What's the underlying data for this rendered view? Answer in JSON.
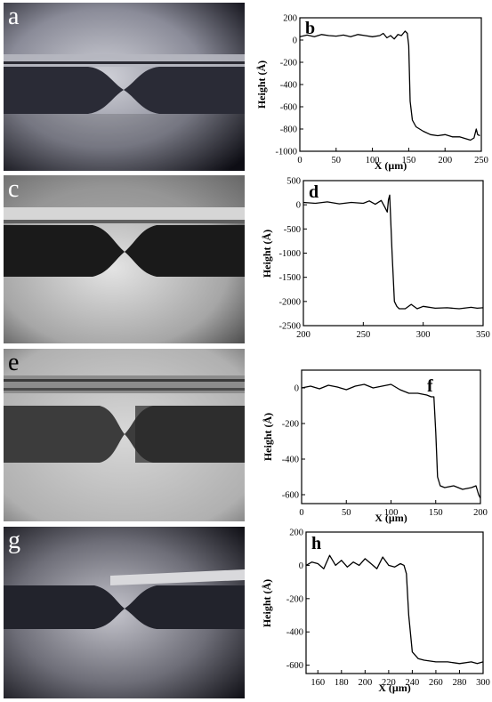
{
  "figure": {
    "panel_labels": [
      "a",
      "b",
      "c",
      "d",
      "e",
      "f",
      "g",
      "h"
    ]
  },
  "colors": {
    "line": "#000000",
    "photo_shadow": "#1c1d25",
    "photo_bright": "#c8c9cf"
  },
  "chart_data": [
    {
      "type": "line",
      "panel_label": "b",
      "xlabel": "X (μm)",
      "ylabel": "Height (Å)",
      "xlim": [
        0,
        250
      ],
      "ylim": [
        -1000,
        200
      ],
      "xticks": [
        0,
        50,
        100,
        150,
        200,
        250
      ],
      "yticks": [
        200,
        0,
        -200,
        -400,
        -600,
        -800,
        -1000
      ],
      "grid": false,
      "series": [
        {
          "x": [
            0,
            10,
            20,
            30,
            40,
            50,
            60,
            70,
            80,
            90,
            100,
            110,
            115,
            120,
            125,
            130,
            135,
            140,
            145,
            148,
            150,
            152,
            155,
            160,
            170,
            180,
            190,
            200,
            210,
            220,
            230,
            235,
            240,
            243,
            245,
            248
          ],
          "y": [
            30,
            45,
            30,
            50,
            40,
            35,
            45,
            30,
            50,
            40,
            30,
            40,
            60,
            20,
            40,
            10,
            50,
            40,
            80,
            60,
            -50,
            -550,
            -720,
            -780,
            -820,
            -850,
            -860,
            -850,
            -870,
            -870,
            -890,
            -900,
            -880,
            -800,
            -850,
            -860
          ]
        }
      ]
    },
    {
      "type": "line",
      "panel_label": "d",
      "xlabel": "",
      "ylabel": "Height (Å)",
      "xlim": [
        200,
        350
      ],
      "ylim": [
        -2500,
        500
      ],
      "xticks": [
        200,
        250,
        300,
        350
      ],
      "yticks": [
        500,
        0,
        -500,
        -1000,
        -1500,
        -2000,
        -2500
      ],
      "grid": false,
      "series": [
        {
          "x": [
            200,
            210,
            220,
            230,
            240,
            250,
            255,
            260,
            265,
            268,
            270,
            271,
            272,
            274,
            276,
            278,
            280,
            285,
            290,
            295,
            300,
            310,
            320,
            330,
            340,
            345,
            350
          ],
          "y": [
            50,
            30,
            60,
            20,
            50,
            30,
            80,
            10,
            90,
            -50,
            -150,
            100,
            200,
            -1000,
            -2000,
            -2100,
            -2150,
            -2150,
            -2060,
            -2150,
            -2100,
            -2140,
            -2130,
            -2150,
            -2120,
            -2140,
            -2130
          ]
        }
      ]
    },
    {
      "type": "line",
      "panel_label": "f",
      "xlabel": "X (μm)",
      "ylabel": "Height (Å)",
      "xlim": [
        0,
        200
      ],
      "ylim": [
        -650,
        100
      ],
      "xticks": [
        0,
        50,
        100,
        150,
        200
      ],
      "yticks": [
        0,
        -200,
        -400,
        -600
      ],
      "grid": false,
      "series": [
        {
          "x": [
            0,
            10,
            20,
            30,
            40,
            50,
            60,
            70,
            80,
            90,
            100,
            110,
            120,
            130,
            140,
            145,
            148,
            150,
            152,
            155,
            160,
            170,
            180,
            190,
            195,
            198,
            200
          ],
          "y": [
            0,
            10,
            -5,
            15,
            5,
            -10,
            10,
            20,
            0,
            10,
            20,
            -10,
            -30,
            -30,
            -40,
            -50,
            -50,
            -250,
            -500,
            -550,
            -560,
            -550,
            -570,
            -560,
            -550,
            -600,
            -620
          ]
        }
      ]
    },
    {
      "type": "line",
      "panel_label": "h",
      "xlabel": "X (μm)",
      "ylabel": "Height (Å)",
      "xlim": [
        150,
        300
      ],
      "ylim": [
        -650,
        200
      ],
      "xticks": [
        160,
        180,
        200,
        220,
        240,
        260,
        280,
        300
      ],
      "yticks": [
        200,
        0,
        -200,
        -400,
        -600
      ],
      "grid": false,
      "series": [
        {
          "x": [
            150,
            155,
            160,
            165,
            170,
            175,
            180,
            185,
            190,
            195,
            200,
            205,
            210,
            215,
            220,
            225,
            230,
            233,
            235,
            237,
            240,
            245,
            250,
            260,
            270,
            280,
            290,
            295,
            300
          ],
          "y": [
            0,
            20,
            10,
            -20,
            60,
            0,
            30,
            -10,
            20,
            0,
            40,
            10,
            -20,
            50,
            0,
            -10,
            10,
            0,
            -50,
            -300,
            -520,
            -560,
            -570,
            -580,
            -580,
            -590,
            -580,
            -590,
            -580
          ]
        }
      ]
    }
  ]
}
